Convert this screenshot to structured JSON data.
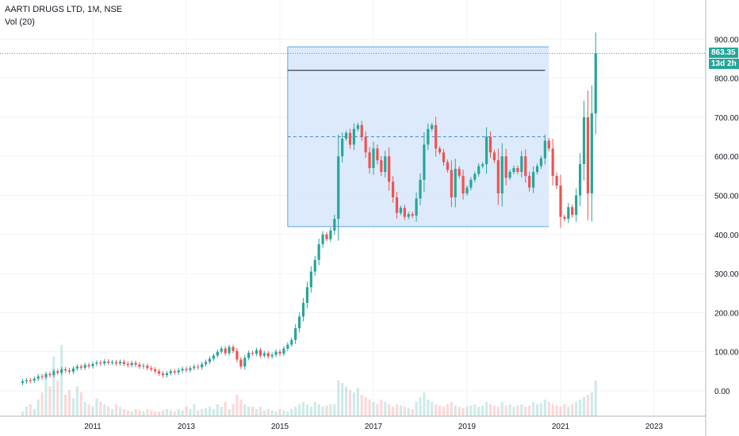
{
  "header": {
    "title": "AARTI DRUGS LTD, 1M, NSE",
    "volume_label": "Vol (20)"
  },
  "price_axis": {
    "ticks": [
      "900.00",
      "800.00",
      "700.00",
      "600.00",
      "500.00",
      "400.00",
      "300.00",
      "200.00",
      "100.00",
      "0.00"
    ],
    "last_price": "863.35",
    "countdown": "13d 2h"
  },
  "time_axis": {
    "ticks": [
      "2011",
      "2013",
      "2015",
      "2017",
      "2019",
      "2021",
      "2023"
    ]
  },
  "colors": {
    "up": "#26a69a",
    "down": "#ef5350",
    "range_fill": "#d6e6fb",
    "range_line": "#5aa8e6",
    "grid": "#f0f3fa",
    "last_price": "#26a69a"
  },
  "chart_data": {
    "type": "candlestick",
    "title": "AARTI DRUGS LTD, 1M, NSE",
    "interval": "1M",
    "y_axis_range": [
      -65,
      1000
    ],
    "x_axis_range": [
      "2009-06",
      "2023-12"
    ],
    "last_price": 863.35,
    "annotations": {
      "range_box": {
        "from": "2015-03",
        "to": "2020-10",
        "top": 880,
        "bottom": 420
      },
      "resistance_line": {
        "from": "2015-03",
        "to": "2020-09",
        "value": 820
      },
      "midline": {
        "from": "2015-03",
        "to": "2020-09",
        "value": 650,
        "style": "dashed"
      }
    },
    "candles": [
      {
        "o": 20,
        "c": 24
      },
      {
        "o": 24,
        "c": 27
      },
      {
        "o": 27,
        "c": 26
      },
      {
        "o": 26,
        "c": 31
      },
      {
        "o": 31,
        "c": 37
      },
      {
        "o": 37,
        "c": 35
      },
      {
        "o": 35,
        "c": 43
      },
      {
        "o": 43,
        "c": 40
      },
      {
        "o": 40,
        "c": 50
      },
      {
        "o": 50,
        "c": 46
      },
      {
        "o": 46,
        "c": 55
      },
      {
        "o": 55,
        "c": 52
      },
      {
        "o": 52,
        "c": 49
      },
      {
        "o": 49,
        "c": 57
      },
      {
        "o": 57,
        "c": 62
      },
      {
        "o": 62,
        "c": 59
      },
      {
        "o": 59,
        "c": 66
      },
      {
        "o": 66,
        "c": 63
      },
      {
        "o": 63,
        "c": 69
      },
      {
        "o": 69,
        "c": 72
      },
      {
        "o": 72,
        "c": 70
      },
      {
        "o": 70,
        "c": 75
      },
      {
        "o": 75,
        "c": 72
      },
      {
        "o": 72,
        "c": 73
      },
      {
        "o": 73,
        "c": 70
      },
      {
        "o": 70,
        "c": 74
      },
      {
        "o": 74,
        "c": 69
      },
      {
        "o": 69,
        "c": 66
      },
      {
        "o": 66,
        "c": 71
      },
      {
        "o": 71,
        "c": 67
      },
      {
        "o": 67,
        "c": 62
      },
      {
        "o": 62,
        "c": 64
      },
      {
        "o": 64,
        "c": 58
      },
      {
        "o": 58,
        "c": 55
      },
      {
        "o": 55,
        "c": 50
      },
      {
        "o": 50,
        "c": 44
      },
      {
        "o": 44,
        "c": 40
      },
      {
        "o": 40,
        "c": 45
      },
      {
        "o": 45,
        "c": 50
      },
      {
        "o": 50,
        "c": 47
      },
      {
        "o": 47,
        "c": 52
      },
      {
        "o": 52,
        "c": 56
      },
      {
        "o": 56,
        "c": 53
      },
      {
        "o": 53,
        "c": 58
      },
      {
        "o": 58,
        "c": 62
      },
      {
        "o": 62,
        "c": 60
      },
      {
        "o": 60,
        "c": 68
      },
      {
        "o": 68,
        "c": 74
      },
      {
        "o": 74,
        "c": 82
      },
      {
        "o": 82,
        "c": 90
      },
      {
        "o": 90,
        "c": 100
      },
      {
        "o": 100,
        "c": 108
      },
      {
        "o": 108,
        "c": 96
      },
      {
        "o": 96,
        "c": 112
      },
      {
        "o": 112,
        "c": 102
      },
      {
        "o": 102,
        "c": 80
      },
      {
        "o": 80,
        "c": 62
      },
      {
        "o": 62,
        "c": 84
      },
      {
        "o": 84,
        "c": 97
      },
      {
        "o": 97,
        "c": 95
      },
      {
        "o": 95,
        "c": 104
      },
      {
        "o": 104,
        "c": 90
      },
      {
        "o": 90,
        "c": 96
      },
      {
        "o": 96,
        "c": 88
      },
      {
        "o": 88,
        "c": 92
      },
      {
        "o": 92,
        "c": 100
      },
      {
        "o": 100,
        "c": 95
      },
      {
        "o": 95,
        "c": 108
      },
      {
        "o": 108,
        "c": 118
      },
      {
        "o": 118,
        "c": 130
      },
      {
        "o": 130,
        "c": 160
      },
      {
        "o": 160,
        "c": 190
      },
      {
        "o": 190,
        "c": 225
      },
      {
        "o": 225,
        "c": 265
      },
      {
        "o": 265,
        "c": 305
      },
      {
        "o": 305,
        "c": 335
      },
      {
        "o": 335,
        "c": 375
      },
      {
        "o": 375,
        "c": 400
      },
      {
        "o": 400,
        "c": 388
      },
      {
        "o": 388,
        "c": 410
      },
      {
        "o": 410,
        "c": 440
      },
      {
        "o": 440,
        "c": 600
      },
      {
        "o": 600,
        "c": 645
      },
      {
        "o": 645,
        "c": 660
      },
      {
        "o": 660,
        "c": 630
      },
      {
        "o": 630,
        "c": 670
      },
      {
        "o": 670,
        "c": 680
      },
      {
        "o": 680,
        "c": 650
      },
      {
        "o": 650,
        "c": 610
      },
      {
        "o": 610,
        "c": 570
      },
      {
        "o": 570,
        "c": 620
      },
      {
        "o": 620,
        "c": 590
      },
      {
        "o": 590,
        "c": 560
      },
      {
        "o": 560,
        "c": 600
      },
      {
        "o": 600,
        "c": 535
      },
      {
        "o": 535,
        "c": 495
      },
      {
        "o": 495,
        "c": 455
      },
      {
        "o": 455,
        "c": 468
      },
      {
        "o": 468,
        "c": 445
      },
      {
        "o": 445,
        "c": 452
      },
      {
        "o": 452,
        "c": 448
      },
      {
        "o": 448,
        "c": 492
      },
      {
        "o": 492,
        "c": 540
      },
      {
        "o": 540,
        "c": 630
      },
      {
        "o": 630,
        "c": 670
      },
      {
        "o": 670,
        "c": 680
      },
      {
        "o": 680,
        "c": 620
      },
      {
        "o": 620,
        "c": 610
      },
      {
        "o": 610,
        "c": 585
      },
      {
        "o": 585,
        "c": 565
      },
      {
        "o": 565,
        "c": 495
      },
      {
        "o": 495,
        "c": 568
      },
      {
        "o": 568,
        "c": 550
      },
      {
        "o": 550,
        "c": 505
      },
      {
        "o": 505,
        "c": 520
      },
      {
        "o": 520,
        "c": 540
      },
      {
        "o": 540,
        "c": 555
      },
      {
        "o": 555,
        "c": 575
      },
      {
        "o": 575,
        "c": 580
      },
      {
        "o": 580,
        "c": 650
      },
      {
        "o": 650,
        "c": 610
      },
      {
        "o": 610,
        "c": 590
      },
      {
        "o": 590,
        "c": 505
      },
      {
        "o": 505,
        "c": 600
      },
      {
        "o": 600,
        "c": 545
      },
      {
        "o": 545,
        "c": 560
      },
      {
        "o": 560,
        "c": 570
      },
      {
        "o": 570,
        "c": 560
      },
      {
        "o": 560,
        "c": 600
      },
      {
        "o": 600,
        "c": 550
      },
      {
        "o": 550,
        "c": 520
      },
      {
        "o": 520,
        "c": 560
      },
      {
        "o": 560,
        "c": 575
      },
      {
        "o": 575,
        "c": 595
      },
      {
        "o": 595,
        "c": 640
      },
      {
        "o": 640,
        "c": 620
      },
      {
        "o": 620,
        "c": 550
      },
      {
        "o": 550,
        "c": 525
      },
      {
        "o": 525,
        "c": 445
      },
      {
        "o": 445,
        "c": 440
      },
      {
        "o": 440,
        "c": 470
      },
      {
        "o": 470,
        "c": 450
      },
      {
        "o": 450,
        "c": 500
      },
      {
        "o": 500,
        "c": 580
      },
      {
        "o": 580,
        "c": 700
      },
      {
        "o": 700,
        "c": 505
      },
      {
        "o": 505,
        "c": 710
      },
      {
        "o": 710,
        "c": 863.35
      }
    ],
    "volume": [
      4,
      8,
      10,
      6,
      14,
      20,
      35,
      25,
      50,
      30,
      60,
      18,
      22,
      15,
      25,
      20,
      12,
      10,
      8,
      15,
      12,
      10,
      8,
      6,
      10,
      8,
      6,
      5,
      4,
      6,
      5,
      4,
      6,
      5,
      4,
      4,
      5,
      6,
      5,
      4,
      6,
      5,
      8,
      6,
      10,
      5,
      6,
      7,
      8,
      6,
      10,
      8,
      12,
      6,
      10,
      18,
      14,
      10,
      8,
      8,
      6,
      8,
      5,
      6,
      5,
      4,
      6,
      5,
      4,
      6,
      8,
      10,
      12,
      10,
      8,
      12,
      10,
      8,
      9,
      10,
      10,
      30,
      28,
      25,
      22,
      20,
      24,
      18,
      16,
      14,
      12,
      10,
      14,
      12,
      10,
      8,
      10,
      9,
      8,
      7,
      6,
      12,
      16,
      20,
      14,
      12,
      10,
      9,
      8,
      10,
      12,
      9,
      8,
      7,
      8,
      9,
      10,
      8,
      9,
      12,
      10,
      9,
      8,
      12,
      9,
      10,
      8,
      9,
      10,
      8,
      9,
      12,
      10,
      11,
      14,
      12,
      10,
      9,
      8,
      10,
      8,
      10,
      12,
      14,
      16,
      18,
      20,
      30
    ]
  }
}
